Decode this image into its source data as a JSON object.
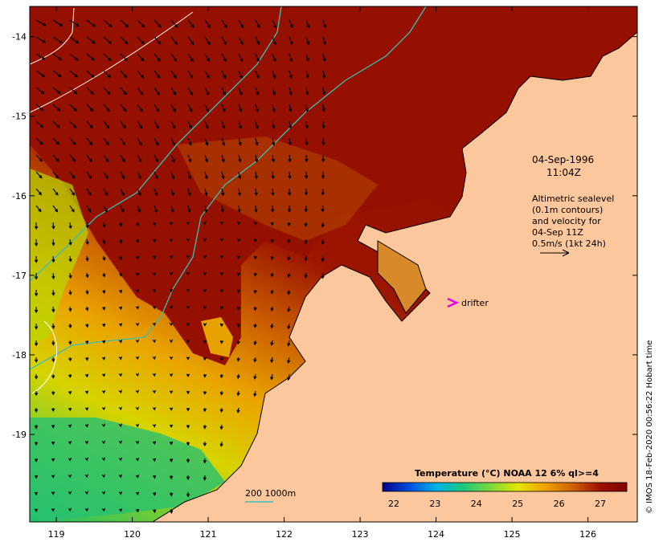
{
  "date": "04-Sep-1996",
  "time": "11:04Z",
  "legend_lines": [
    "Altimetric sealevel",
    "(0.1m contours)",
    "and velocity for",
    "04-Sep 11Z",
    "0.5m/s (1kt 24h)"
  ],
  "drifter_label": "drifter",
  "bathymetry_label": "200  1000m",
  "colorbar": {
    "title": "Temperature (°C) NOAA 12 6% ql>=4",
    "ticks": [
      "22",
      "23",
      "24",
      "25",
      "26",
      "27"
    ],
    "colors": [
      "#00008b",
      "#0050e0",
      "#00b4e6",
      "#20c878",
      "#7fd83c",
      "#e6e600",
      "#f0a000",
      "#d06000",
      "#a01000",
      "#800000"
    ]
  },
  "credit": "© IMOS 18-Feb-2020 00:56:22 Hobart time",
  "colors": {
    "land": "#fcc79c",
    "warm": "#9b0d00",
    "drifter": "#e600e6",
    "contour": "#3bbfb5"
  },
  "chart_data": {
    "type": "heatmap",
    "xaxis": {
      "ticks": [
        119,
        120,
        121,
        122,
        123,
        124,
        125,
        126
      ],
      "range": [
        118.65,
        126.65
      ]
    },
    "yaxis": {
      "ticks": [
        -14,
        -15,
        -16,
        -17,
        -18,
        -19
      ],
      "range": [
        -20.1,
        -13.62
      ]
    }
  }
}
